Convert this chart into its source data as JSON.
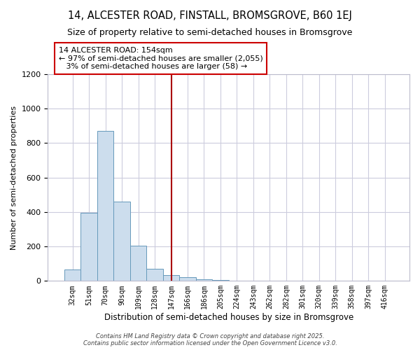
{
  "title": "14, ALCESTER ROAD, FINSTALL, BROMSGROVE, B60 1EJ",
  "subtitle": "Size of property relative to semi-detached houses in Bromsgrove",
  "xlabel": "Distribution of semi-detached houses by size in Bromsgrove",
  "ylabel": "Number of semi-detached properties",
  "bar_color": "#ccdded",
  "bar_edge_color": "#6699bb",
  "categories": [
    "32sqm",
    "51sqm",
    "70sqm",
    "90sqm",
    "109sqm",
    "128sqm",
    "147sqm",
    "166sqm",
    "186sqm",
    "205sqm",
    "224sqm",
    "243sqm",
    "262sqm",
    "282sqm",
    "301sqm",
    "320sqm",
    "339sqm",
    "358sqm",
    "397sqm",
    "416sqm"
  ],
  "values": [
    65,
    395,
    870,
    460,
    205,
    70,
    35,
    20,
    10,
    5,
    3,
    2,
    2,
    1,
    0,
    0,
    0,
    0,
    0,
    0
  ],
  "ylim": [
    0,
    1200
  ],
  "yticks": [
    0,
    200,
    400,
    600,
    800,
    1000,
    1200
  ],
  "property_bar_index": 6,
  "vline_color": "#aa0000",
  "annotation_line1": "14 ALCESTER ROAD: 154sqm",
  "annotation_line2": "← 97% of semi-detached houses are smaller (2,055)",
  "annotation_line3": "   3% of semi-detached houses are larger (58) →",
  "annotation_box_edgecolor": "#cc0000",
  "annotation_box_fill": "#ffffff",
  "footer_text": "Contains HM Land Registry data © Crown copyright and database right 2025.\nContains public sector information licensed under the Open Government Licence v3.0.",
  "background_color": "#ffffff",
  "grid_color": "#ccccdd",
  "title_fontsize": 10.5,
  "subtitle_fontsize": 9,
  "tick_fontsize": 7,
  "ylabel_fontsize": 8,
  "xlabel_fontsize": 8.5,
  "annotation_fontsize": 8
}
